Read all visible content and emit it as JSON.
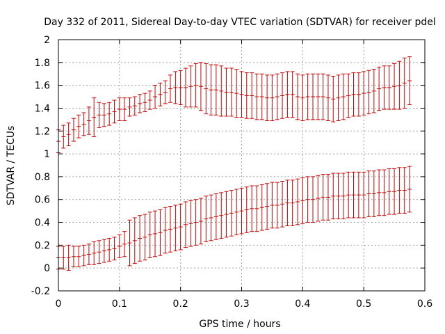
{
  "chart_data": {
    "type": "scatter",
    "title": "Day 332 of 2011, Sidereal Day-to-day VTEC variation (SDTVAR) for receiver pdel",
    "xlabel": "GPS time / hours",
    "ylabel": "SDTVAR / TECUs",
    "xlim": [
      0,
      0.6
    ],
    "ylim": [
      -0.2,
      2
    ],
    "xticks": [
      0,
      0.1,
      0.2,
      0.3,
      0.4,
      0.5,
      0.6
    ],
    "yticks": [
      -0.2,
      0,
      0.2,
      0.4,
      0.6,
      0.8,
      1,
      1.2,
      1.4,
      1.6,
      1.8,
      2
    ],
    "grid": true,
    "series_color": "#cc0000",
    "series": [
      {
        "name": "upper",
        "x": [
          0,
          0.0083,
          0.0167,
          0.025,
          0.0333,
          0.0417,
          0.05,
          0.0583,
          0.0667,
          0.075,
          0.0833,
          0.0917,
          0.1,
          0.1083,
          0.1167,
          0.125,
          0.1333,
          0.1417,
          0.15,
          0.1583,
          0.1667,
          0.175,
          0.1833,
          0.1917,
          0.2,
          0.2083,
          0.2167,
          0.225,
          0.2333,
          0.2417,
          0.25,
          0.2583,
          0.2667,
          0.275,
          0.2833,
          0.2917,
          0.3,
          0.3083,
          0.3167,
          0.325,
          0.3333,
          0.3417,
          0.35,
          0.3583,
          0.3667,
          0.375,
          0.3833,
          0.3917,
          0.4,
          0.4083,
          0.4167,
          0.425,
          0.4333,
          0.4417,
          0.45,
          0.4583,
          0.4667,
          0.475,
          0.4833,
          0.4917,
          0.5,
          0.5083,
          0.5167,
          0.525,
          0.5333,
          0.5417,
          0.55,
          0.5583,
          0.5667,
          0.575
        ],
        "y": [
          1.11,
          1.15,
          1.17,
          1.21,
          1.24,
          1.26,
          1.29,
          1.32,
          1.34,
          1.34,
          1.35,
          1.37,
          1.39,
          1.39,
          1.41,
          1.42,
          1.44,
          1.45,
          1.47,
          1.5,
          1.52,
          1.54,
          1.57,
          1.58,
          1.58,
          1.58,
          1.59,
          1.6,
          1.59,
          1.57,
          1.56,
          1.56,
          1.55,
          1.54,
          1.54,
          1.53,
          1.52,
          1.51,
          1.51,
          1.5,
          1.5,
          1.49,
          1.49,
          1.5,
          1.51,
          1.52,
          1.52,
          1.5,
          1.49,
          1.5,
          1.5,
          1.5,
          1.5,
          1.49,
          1.48,
          1.49,
          1.5,
          1.51,
          1.52,
          1.52,
          1.53,
          1.54,
          1.55,
          1.57,
          1.58,
          1.58,
          1.59,
          1.6,
          1.62,
          1.64
        ],
        "err": [
          0.1,
          0.1,
          0.1,
          0.1,
          0.1,
          0.1,
          0.12,
          0.17,
          0.11,
          0.1,
          0.1,
          0.1,
          0.1,
          0.1,
          0.08,
          0.08,
          0.08,
          0.08,
          0.08,
          0.1,
          0.1,
          0.1,
          0.12,
          0.14,
          0.15,
          0.17,
          0.18,
          0.19,
          0.21,
          0.22,
          0.22,
          0.22,
          0.22,
          0.21,
          0.21,
          0.21,
          0.2,
          0.2,
          0.2,
          0.2,
          0.2,
          0.2,
          0.2,
          0.2,
          0.2,
          0.2,
          0.2,
          0.2,
          0.2,
          0.2,
          0.2,
          0.2,
          0.2,
          0.2,
          0.2,
          0.2,
          0.2,
          0.19,
          0.19,
          0.19,
          0.19,
          0.19,
          0.19,
          0.19,
          0.19,
          0.19,
          0.2,
          0.21,
          0.22,
          0.21
        ]
      },
      {
        "name": "lower",
        "x": [
          0,
          0.0083,
          0.0167,
          0.025,
          0.0333,
          0.0417,
          0.05,
          0.0583,
          0.0667,
          0.075,
          0.0833,
          0.0917,
          0.1,
          0.1083,
          0.1167,
          0.125,
          0.1333,
          0.1417,
          0.15,
          0.1583,
          0.1667,
          0.175,
          0.1833,
          0.1917,
          0.2,
          0.2083,
          0.2167,
          0.225,
          0.2333,
          0.2417,
          0.25,
          0.2583,
          0.2667,
          0.275,
          0.2833,
          0.2917,
          0.3,
          0.3083,
          0.3167,
          0.325,
          0.3333,
          0.3417,
          0.35,
          0.3583,
          0.3667,
          0.375,
          0.3833,
          0.3917,
          0.4,
          0.4083,
          0.4167,
          0.425,
          0.4333,
          0.4417,
          0.45,
          0.4583,
          0.4667,
          0.475,
          0.4833,
          0.4917,
          0.5,
          0.5083,
          0.5167,
          0.525,
          0.5333,
          0.5417,
          0.55,
          0.5583,
          0.5667,
          0.575
        ],
        "y": [
          0.09,
          0.09,
          0.09,
          0.1,
          0.1,
          0.11,
          0.12,
          0.13,
          0.14,
          0.15,
          0.16,
          0.17,
          0.19,
          0.21,
          0.22,
          0.24,
          0.26,
          0.27,
          0.29,
          0.3,
          0.31,
          0.33,
          0.34,
          0.35,
          0.36,
          0.38,
          0.39,
          0.4,
          0.41,
          0.43,
          0.44,
          0.45,
          0.46,
          0.47,
          0.48,
          0.49,
          0.5,
          0.51,
          0.52,
          0.52,
          0.53,
          0.54,
          0.55,
          0.55,
          0.56,
          0.57,
          0.57,
          0.58,
          0.59,
          0.6,
          0.6,
          0.61,
          0.62,
          0.62,
          0.63,
          0.63,
          0.63,
          0.64,
          0.64,
          0.64,
          0.64,
          0.65,
          0.65,
          0.66,
          0.66,
          0.67,
          0.67,
          0.68,
          0.68,
          0.69
        ],
        "err": [
          0.1,
          0.1,
          0.11,
          0.09,
          0.09,
          0.09,
          0.09,
          0.1,
          0.1,
          0.1,
          0.1,
          0.1,
          0.1,
          0.11,
          0.2,
          0.2,
          0.2,
          0.2,
          0.2,
          0.2,
          0.2,
          0.2,
          0.2,
          0.2,
          0.2,
          0.2,
          0.2,
          0.2,
          0.2,
          0.2,
          0.2,
          0.2,
          0.2,
          0.2,
          0.2,
          0.2,
          0.2,
          0.2,
          0.2,
          0.2,
          0.2,
          0.2,
          0.2,
          0.2,
          0.2,
          0.2,
          0.2,
          0.2,
          0.2,
          0.2,
          0.2,
          0.2,
          0.2,
          0.2,
          0.2,
          0.2,
          0.2,
          0.2,
          0.2,
          0.2,
          0.2,
          0.2,
          0.2,
          0.2,
          0.2,
          0.2,
          0.2,
          0.2,
          0.2,
          0.2
        ]
      }
    ]
  }
}
